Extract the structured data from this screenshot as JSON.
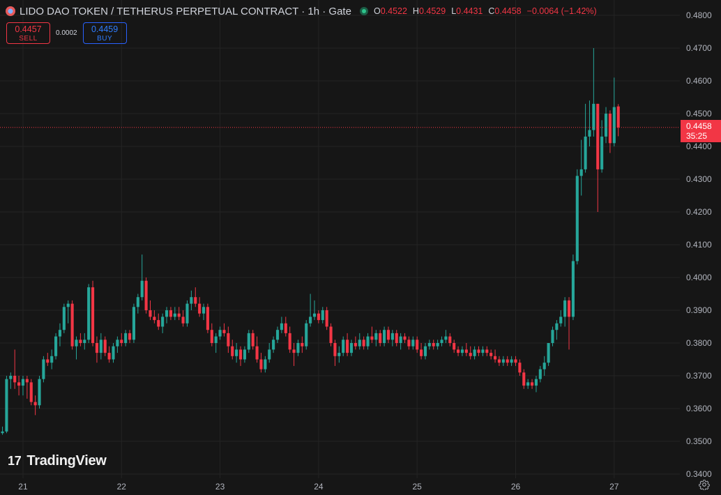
{
  "header": {
    "title": "LIDO DAO TOKEN / TETHERUS PERPETUAL CONTRACT · 1h · Gate",
    "ohlc": {
      "o_label": "O",
      "o_value": "0.4522",
      "h_label": "H",
      "h_value": "0.4529",
      "l_label": "L",
      "l_value": "0.4431",
      "c_label": "C",
      "c_value": "0.4458",
      "change": "−0.0064 (−1.42%)"
    }
  },
  "trade": {
    "sell_price": "0.4457",
    "sell_label": "SELL",
    "spread": "0.0002",
    "buy_price": "0.4459",
    "buy_label": "BUY"
  },
  "price_label": {
    "price": "0.4458",
    "countdown": "35:25"
  },
  "logo": {
    "mark": "17",
    "text": "TradingView"
  },
  "colors": {
    "up": "#26a69a",
    "down": "#f23645",
    "grid": "#242424",
    "bg": "#161616",
    "axis_text": "#b2b5be"
  },
  "icons": {
    "settings": "gear-icon",
    "status": "market-open-dot"
  },
  "chart_data": {
    "type": "candlestick",
    "title": "LIDO DAO TOKEN / TETHERUS PERPETUAL CONTRACT · 1h · Gate",
    "interval": "1h",
    "ylim": [
      0.34,
      0.48
    ],
    "y_ticks": [
      "0.3400",
      "0.3500",
      "0.3600",
      "0.3700",
      "0.3800",
      "0.3900",
      "0.4000",
      "0.4100",
      "0.4200",
      "0.4300",
      "0.4400",
      "0.4500",
      "0.4600",
      "0.4700",
      "0.4800"
    ],
    "x_ticks": [
      {
        "label": "21",
        "index": 5
      },
      {
        "label": "22",
        "index": 29
      },
      {
        "label": "23",
        "index": 53
      },
      {
        "label": "24",
        "index": 77
      },
      {
        "label": "25",
        "index": 101
      },
      {
        "label": "26",
        "index": 125
      },
      {
        "label": "27",
        "index": 149
      }
    ],
    "x_range": [
      -0.6,
      165
    ],
    "last_price": 0.4458,
    "candles": [
      [
        0.3525,
        0.3545,
        0.352,
        0.353
      ],
      [
        0.353,
        0.37,
        0.3525,
        0.369
      ],
      [
        0.369,
        0.371,
        0.366,
        0.37
      ],
      [
        0.37,
        0.378,
        0.366,
        0.368
      ],
      [
        0.368,
        0.37,
        0.364,
        0.367
      ],
      [
        0.367,
        0.37,
        0.364,
        0.369
      ],
      [
        0.369,
        0.37,
        0.363,
        0.368
      ],
      [
        0.368,
        0.369,
        0.361,
        0.362
      ],
      [
        0.362,
        0.364,
        0.358,
        0.361
      ],
      [
        0.361,
        0.37,
        0.36,
        0.369
      ],
      [
        0.369,
        0.376,
        0.368,
        0.375
      ],
      [
        0.375,
        0.377,
        0.373,
        0.374
      ],
      [
        0.374,
        0.378,
        0.372,
        0.376
      ],
      [
        0.376,
        0.383,
        0.375,
        0.382
      ],
      [
        0.382,
        0.386,
        0.379,
        0.384
      ],
      [
        0.384,
        0.392,
        0.383,
        0.391
      ],
      [
        0.391,
        0.393,
        0.386,
        0.392
      ],
      [
        0.392,
        0.393,
        0.378,
        0.379
      ],
      [
        0.379,
        0.382,
        0.375,
        0.381
      ],
      [
        0.381,
        0.383,
        0.379,
        0.38
      ],
      [
        0.38,
        0.383,
        0.378,
        0.381
      ],
      [
        0.381,
        0.398,
        0.38,
        0.397
      ],
      [
        0.397,
        0.399,
        0.379,
        0.38
      ],
      [
        0.38,
        0.382,
        0.374,
        0.377
      ],
      [
        0.377,
        0.383,
        0.375,
        0.381
      ],
      [
        0.381,
        0.382,
        0.376,
        0.377
      ],
      [
        0.377,
        0.379,
        0.374,
        0.375
      ],
      [
        0.375,
        0.38,
        0.374,
        0.379
      ],
      [
        0.379,
        0.382,
        0.377,
        0.381
      ],
      [
        0.381,
        0.383,
        0.379,
        0.38
      ],
      [
        0.38,
        0.384,
        0.379,
        0.383
      ],
      [
        0.383,
        0.384,
        0.38,
        0.381
      ],
      [
        0.381,
        0.392,
        0.38,
        0.391
      ],
      [
        0.391,
        0.395,
        0.389,
        0.394
      ],
      [
        0.394,
        0.407,
        0.393,
        0.399
      ],
      [
        0.399,
        0.4,
        0.389,
        0.39
      ],
      [
        0.39,
        0.393,
        0.387,
        0.388
      ],
      [
        0.388,
        0.39,
        0.386,
        0.387
      ],
      [
        0.387,
        0.389,
        0.384,
        0.385
      ],
      [
        0.385,
        0.389,
        0.383,
        0.388
      ],
      [
        0.388,
        0.391,
        0.386,
        0.39
      ],
      [
        0.39,
        0.391,
        0.387,
        0.388
      ],
      [
        0.388,
        0.391,
        0.387,
        0.389
      ],
      [
        0.389,
        0.391,
        0.387,
        0.388
      ],
      [
        0.388,
        0.39,
        0.385,
        0.386
      ],
      [
        0.386,
        0.393,
        0.385,
        0.392
      ],
      [
        0.392,
        0.396,
        0.39,
        0.394
      ],
      [
        0.394,
        0.397,
        0.391,
        0.392
      ],
      [
        0.392,
        0.394,
        0.388,
        0.389
      ],
      [
        0.389,
        0.392,
        0.387,
        0.391
      ],
      [
        0.391,
        0.392,
        0.383,
        0.384
      ],
      [
        0.384,
        0.386,
        0.379,
        0.38
      ],
      [
        0.38,
        0.383,
        0.377,
        0.382
      ],
      [
        0.382,
        0.385,
        0.381,
        0.384
      ],
      [
        0.384,
        0.386,
        0.382,
        0.383
      ],
      [
        0.383,
        0.385,
        0.377,
        0.379
      ],
      [
        0.379,
        0.381,
        0.375,
        0.376
      ],
      [
        0.376,
        0.38,
        0.374,
        0.378
      ],
      [
        0.378,
        0.379,
        0.373,
        0.375
      ],
      [
        0.375,
        0.379,
        0.374,
        0.378
      ],
      [
        0.378,
        0.384,
        0.377,
        0.383
      ],
      [
        0.383,
        0.384,
        0.378,
        0.379
      ],
      [
        0.379,
        0.382,
        0.374,
        0.375
      ],
      [
        0.375,
        0.377,
        0.371,
        0.372
      ],
      [
        0.372,
        0.376,
        0.371,
        0.375
      ],
      [
        0.375,
        0.38,
        0.374,
        0.378
      ],
      [
        0.378,
        0.382,
        0.377,
        0.381
      ],
      [
        0.381,
        0.385,
        0.38,
        0.384
      ],
      [
        0.384,
        0.388,
        0.383,
        0.386
      ],
      [
        0.386,
        0.388,
        0.382,
        0.383
      ],
      [
        0.383,
        0.385,
        0.377,
        0.378
      ],
      [
        0.378,
        0.38,
        0.373,
        0.377
      ],
      [
        0.377,
        0.381,
        0.376,
        0.38
      ],
      [
        0.38,
        0.382,
        0.377,
        0.379
      ],
      [
        0.379,
        0.387,
        0.378,
        0.386
      ],
      [
        0.386,
        0.395,
        0.385,
        0.388
      ],
      [
        0.388,
        0.393,
        0.387,
        0.389
      ],
      [
        0.389,
        0.39,
        0.386,
        0.387
      ],
      [
        0.387,
        0.391,
        0.386,
        0.39
      ],
      [
        0.39,
        0.391,
        0.384,
        0.385
      ],
      [
        0.385,
        0.386,
        0.379,
        0.38
      ],
      [
        0.38,
        0.381,
        0.373,
        0.376
      ],
      [
        0.376,
        0.379,
        0.374,
        0.377
      ],
      [
        0.377,
        0.382,
        0.376,
        0.381
      ],
      [
        0.381,
        0.383,
        0.376,
        0.377
      ],
      [
        0.377,
        0.381,
        0.376,
        0.38
      ],
      [
        0.38,
        0.382,
        0.378,
        0.379
      ],
      [
        0.379,
        0.383,
        0.378,
        0.381
      ],
      [
        0.381,
        0.382,
        0.378,
        0.379
      ],
      [
        0.379,
        0.383,
        0.378,
        0.382
      ],
      [
        0.382,
        0.385,
        0.38,
        0.381
      ],
      [
        0.381,
        0.384,
        0.379,
        0.383
      ],
      [
        0.383,
        0.384,
        0.379,
        0.38
      ],
      [
        0.38,
        0.385,
        0.379,
        0.384
      ],
      [
        0.384,
        0.385,
        0.38,
        0.381
      ],
      [
        0.381,
        0.384,
        0.379,
        0.383
      ],
      [
        0.383,
        0.384,
        0.379,
        0.38
      ],
      [
        0.38,
        0.383,
        0.378,
        0.382
      ],
      [
        0.382,
        0.383,
        0.38,
        0.381
      ],
      [
        0.381,
        0.382,
        0.378,
        0.379
      ],
      [
        0.379,
        0.382,
        0.378,
        0.381
      ],
      [
        0.381,
        0.382,
        0.377,
        0.378
      ],
      [
        0.378,
        0.38,
        0.375,
        0.376
      ],
      [
        0.376,
        0.38,
        0.375,
        0.379
      ],
      [
        0.379,
        0.381,
        0.378,
        0.38
      ],
      [
        0.38,
        0.381,
        0.378,
        0.379
      ],
      [
        0.379,
        0.381,
        0.378,
        0.38
      ],
      [
        0.38,
        0.382,
        0.379,
        0.381
      ],
      [
        0.381,
        0.384,
        0.38,
        0.382
      ],
      [
        0.382,
        0.383,
        0.379,
        0.38
      ],
      [
        0.38,
        0.381,
        0.377,
        0.378
      ],
      [
        0.378,
        0.379,
        0.376,
        0.377
      ],
      [
        0.377,
        0.379,
        0.376,
        0.378
      ],
      [
        0.378,
        0.38,
        0.376,
        0.377
      ],
      [
        0.377,
        0.379,
        0.375,
        0.376
      ],
      [
        0.376,
        0.379,
        0.375,
        0.378
      ],
      [
        0.378,
        0.379,
        0.376,
        0.377
      ],
      [
        0.377,
        0.379,
        0.376,
        0.378
      ],
      [
        0.378,
        0.379,
        0.376,
        0.377
      ],
      [
        0.377,
        0.378,
        0.375,
        0.376
      ],
      [
        0.376,
        0.378,
        0.374,
        0.375
      ],
      [
        0.375,
        0.376,
        0.373,
        0.374
      ],
      [
        0.374,
        0.376,
        0.373,
        0.375
      ],
      [
        0.375,
        0.376,
        0.373,
        0.374
      ],
      [
        0.374,
        0.376,
        0.373,
        0.375
      ],
      [
        0.375,
        0.376,
        0.373,
        0.374
      ],
      [
        0.374,
        0.375,
        0.37,
        0.371
      ],
      [
        0.371,
        0.372,
        0.366,
        0.367
      ],
      [
        0.367,
        0.369,
        0.366,
        0.368
      ],
      [
        0.368,
        0.369,
        0.366,
        0.367
      ],
      [
        0.367,
        0.37,
        0.365,
        0.369
      ],
      [
        0.369,
        0.373,
        0.368,
        0.372
      ],
      [
        0.372,
        0.376,
        0.37,
        0.374
      ],
      [
        0.374,
        0.38,
        0.373,
        0.38
      ],
      [
        0.38,
        0.385,
        0.379,
        0.384
      ],
      [
        0.384,
        0.387,
        0.381,
        0.386
      ],
      [
        0.386,
        0.39,
        0.385,
        0.388
      ],
      [
        0.388,
        0.394,
        0.385,
        0.393
      ],
      [
        0.393,
        0.394,
        0.378,
        0.388
      ],
      [
        0.388,
        0.407,
        0.387,
        0.405
      ],
      [
        0.405,
        0.433,
        0.404,
        0.431
      ],
      [
        0.431,
        0.442,
        0.425,
        0.433
      ],
      [
        0.433,
        0.453,
        0.432,
        0.443
      ],
      [
        0.443,
        0.454,
        0.44,
        0.445
      ],
      [
        0.445,
        0.47,
        0.443,
        0.453
      ],
      [
        0.453,
        0.453,
        0.42,
        0.433
      ],
      [
        0.433,
        0.448,
        0.432,
        0.443
      ],
      [
        0.443,
        0.452,
        0.441,
        0.45
      ],
      [
        0.45,
        0.451,
        0.438,
        0.441
      ],
      [
        0.441,
        0.461,
        0.44,
        0.452
      ],
      [
        0.4522,
        0.4529,
        0.4431,
        0.4458
      ]
    ]
  }
}
